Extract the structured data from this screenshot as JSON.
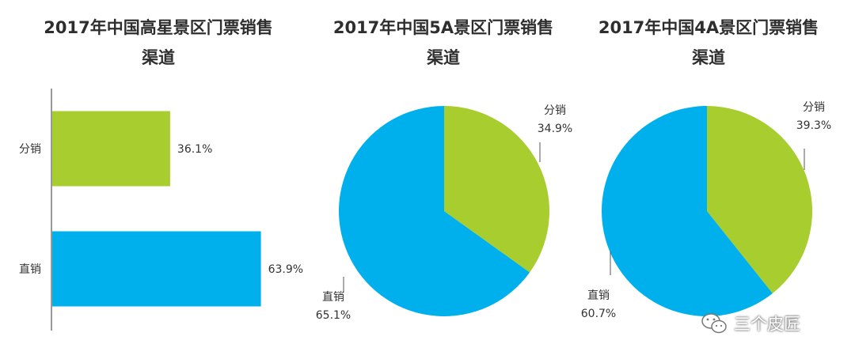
{
  "chart_data": [
    {
      "type": "bar",
      "orientation": "horizontal",
      "title": "2017年中国高星景区门票销售渠道",
      "categories": [
        "分销",
        "直销"
      ],
      "values": [
        36.1,
        63.9
      ],
      "value_labels": [
        "36.1%",
        "63.9%"
      ],
      "colors": [
        "#a8cd2f",
        "#00b0ec"
      ],
      "xlim": [
        0,
        80
      ],
      "grid": false
    },
    {
      "type": "pie",
      "title": "2017年中国5A景区门票销售渠道",
      "labels": [
        "分销",
        "直销"
      ],
      "values": [
        34.9,
        65.1
      ],
      "value_labels": [
        "34.9%",
        "65.1%"
      ],
      "colors": [
        "#a8cd2f",
        "#00b0ec"
      ]
    },
    {
      "type": "pie",
      "title": "2017年中国4A景区门票销售渠道",
      "labels": [
        "分销",
        "直销"
      ],
      "values": [
        39.3,
        60.7
      ],
      "value_labels": [
        "39.3%",
        "60.7%"
      ],
      "colors": [
        "#a8cd2f",
        "#00b0ec"
      ]
    }
  ],
  "watermark": {
    "icon": "wechat-icon",
    "text": "三个皮匠"
  }
}
